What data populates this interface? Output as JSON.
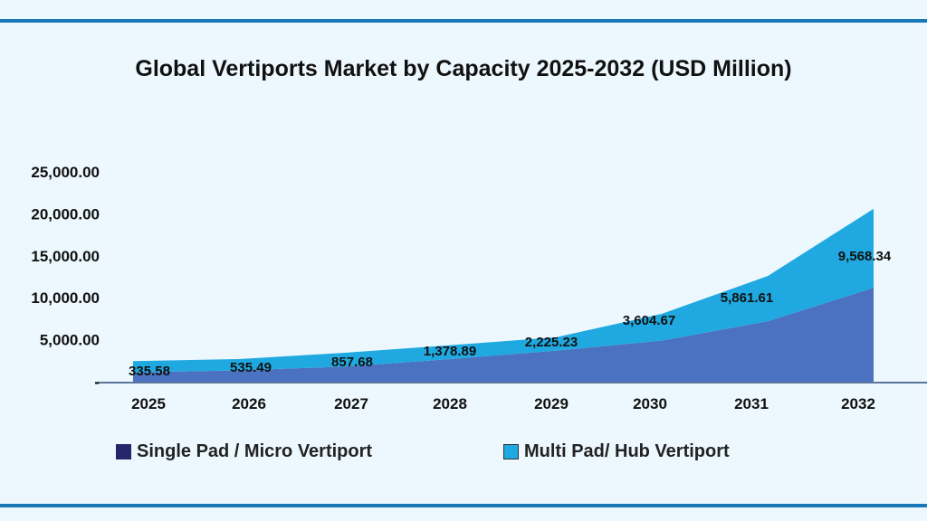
{
  "chart_data": {
    "type": "area",
    "stacked": true,
    "title": "Global Vertiports Market by Capacity 2025-2032 (USD Million)",
    "categories": [
      "2025",
      "2026",
      "2027",
      "2028",
      "2029",
      "2030",
      "2031",
      "2032"
    ],
    "series": [
      {
        "name": "Single Pad / Micro Vertiport",
        "color": "#4a72c0",
        "values": [
          1100,
          1350,
          1800,
          2700,
          3700,
          4900,
          7200,
          11200
        ]
      },
      {
        "name": "Multi Pad/ Hub Vertiport",
        "color": "#1fa9e0",
        "values": [
          1350,
          1350,
          1650,
          1650,
          1600,
          3200,
          5400,
          9400
        ]
      }
    ],
    "data_labels": [
      "335.58",
      "535.49",
      "857.68",
      "1,378.89",
      "2,225.23",
      "3,604.67",
      "5,861.61",
      "9,568.34"
    ],
    "yticks": [
      0,
      5000,
      10000,
      15000,
      20000,
      25000
    ],
    "ytick_labels": [
      "-",
      "5,000.00",
      "10,000.00",
      "15,000.00",
      "20,000.00",
      "25,000.00"
    ],
    "ylim": [
      0,
      25000
    ],
    "grid": false,
    "legend_position": "bottom",
    "legend_colors": [
      "#25266a",
      "#1fa9e0"
    ]
  }
}
